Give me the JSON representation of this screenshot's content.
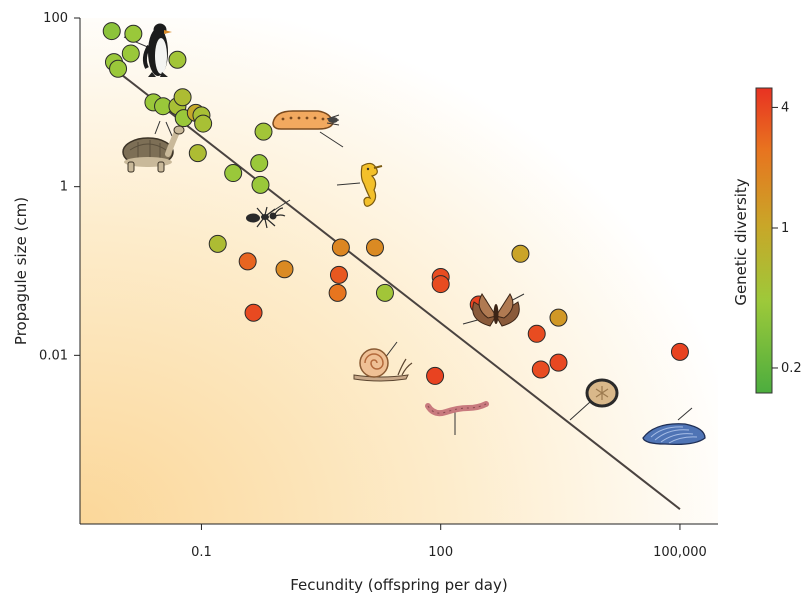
{
  "chart_data": {
    "type": "scatter",
    "xlabel": "Fecundity (offspring per day)",
    "ylabel": "Propagule size (cm)",
    "x_scale": "log",
    "y_scale": "log",
    "xlim": [
      0.003,
      300000
    ],
    "ylim": [
      0.0001,
      100
    ],
    "xticks": [
      {
        "value": 0.1,
        "label": "0.1"
      },
      {
        "value": 100,
        "label": "100"
      },
      {
        "value": 100000,
        "label": "100,000"
      }
    ],
    "yticks": [
      {
        "value": 100,
        "label": "100"
      },
      {
        "value": 1,
        "label": "1"
      },
      {
        "value": 0.01,
        "label": "0.01"
      }
    ],
    "colorbar": {
      "title": "Genetic diversity",
      "ticks": [
        {
          "value": 4,
          "label": "4"
        },
        {
          "value": 1,
          "label": "1"
        },
        {
          "value": 0.2,
          "label": "0.2"
        }
      ],
      "range": [
        0.15,
        5
      ],
      "colors": [
        "#4cad3e",
        "#9dc93a",
        "#c9a628",
        "#e8731f",
        "#e83222"
      ]
    },
    "trend_line": {
      "x": [
        0.008,
        100000
      ],
      "y": [
        25,
        0.00015
      ],
      "color": "#4a4340"
    },
    "points": [
      {
        "x": 0.0075,
        "y": 70,
        "gd": 0.3
      },
      {
        "x": 0.014,
        "y": 65,
        "gd": 0.35
      },
      {
        "x": 0.013,
        "y": 38,
        "gd": 0.35
      },
      {
        "x": 0.008,
        "y": 30,
        "gd": 0.35
      },
      {
        "x": 0.009,
        "y": 25,
        "gd": 0.35
      },
      {
        "x": 0.05,
        "y": 32,
        "gd": 0.4
      },
      {
        "x": 0.025,
        "y": 10,
        "gd": 0.35
      },
      {
        "x": 0.033,
        "y": 9,
        "gd": 0.35
      },
      {
        "x": 0.05,
        "y": 9,
        "gd": 0.45
      },
      {
        "x": 0.058,
        "y": 11.5,
        "gd": 0.5
      },
      {
        "x": 0.06,
        "y": 6.5,
        "gd": 0.35
      },
      {
        "x": 0.085,
        "y": 7.5,
        "gd": 0.8
      },
      {
        "x": 0.1,
        "y": 7,
        "gd": 0.45
      },
      {
        "x": 0.105,
        "y": 5.6,
        "gd": 0.45
      },
      {
        "x": 0.09,
        "y": 2.5,
        "gd": 0.5
      },
      {
        "x": 0.6,
        "y": 4.5,
        "gd": 0.4
      },
      {
        "x": 0.53,
        "y": 1.9,
        "gd": 0.35
      },
      {
        "x": 0.55,
        "y": 1.05,
        "gd": 0.35
      },
      {
        "x": 0.25,
        "y": 1.45,
        "gd": 0.35
      },
      {
        "x": 0.16,
        "y": 0.21,
        "gd": 0.5
      },
      {
        "x": 0.38,
        "y": 0.13,
        "gd": 2.5
      },
      {
        "x": 1.1,
        "y": 0.105,
        "gd": 1.4
      },
      {
        "x": 5.6,
        "y": 0.19,
        "gd": 1.5
      },
      {
        "x": 15,
        "y": 0.19,
        "gd": 1.4
      },
      {
        "x": 5.3,
        "y": 0.09,
        "gd": 3.0
      },
      {
        "x": 20,
        "y": 0.055,
        "gd": 0.4
      },
      {
        "x": 100,
        "y": 0.085,
        "gd": 3.5
      },
      {
        "x": 100,
        "y": 0.07,
        "gd": 3.5
      },
      {
        "x": 1000,
        "y": 0.16,
        "gd": 0.9
      },
      {
        "x": 5.1,
        "y": 0.055,
        "gd": 2.0
      },
      {
        "x": 0.45,
        "y": 0.032,
        "gd": 3.6
      },
      {
        "x": 300,
        "y": 0.04,
        "gd": 4.0
      },
      {
        "x": 3000,
        "y": 0.028,
        "gd": 1.1
      },
      {
        "x": 1600,
        "y": 0.018,
        "gd": 3.5
      },
      {
        "x": 1800,
        "y": 0.0068,
        "gd": 3.5
      },
      {
        "x": 3000,
        "y": 0.0082,
        "gd": 3.7
      },
      {
        "x": 85,
        "y": 0.0057,
        "gd": 4.0
      },
      {
        "x": 100000,
        "y": 0.011,
        "gd": 4.0
      }
    ]
  },
  "illustrations": [
    {
      "name": "penguin-icon"
    },
    {
      "name": "tortoise-icon"
    },
    {
      "name": "caterpillar-icon"
    },
    {
      "name": "seahorse-icon"
    },
    {
      "name": "ant-icon"
    },
    {
      "name": "snail-icon"
    },
    {
      "name": "moth-icon"
    },
    {
      "name": "earthworm-icon"
    },
    {
      "name": "sand-dollar-icon"
    },
    {
      "name": "mussel-icon"
    }
  ]
}
